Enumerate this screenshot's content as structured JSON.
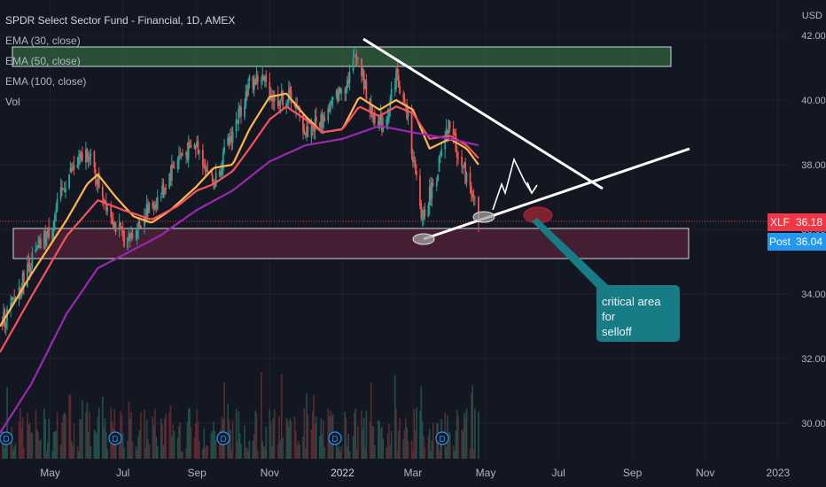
{
  "header": {
    "title": "SPDR Select Sector Fund - Financial, 1D, AMEX",
    "indicators": [
      "EMA (30, close)",
      "EMA (50, close)",
      "EMA (100, close)",
      "Vol"
    ],
    "currency": "USD"
  },
  "price_tags": [
    {
      "label": "XLF",
      "value": "36.18",
      "color": "#f23645"
    },
    {
      "label": "Post",
      "value": "36.04",
      "color": "#2196f3"
    }
  ],
  "annotation": {
    "text_line1": "critical area for",
    "text_line2": "selloff"
  },
  "colors": {
    "background": "#131722",
    "grid": "#1e222d",
    "up": "#26a69a",
    "down": "#ef5350",
    "ema30": "#ffb74d",
    "ema50": "#f7525f",
    "ema100": "#9c27b0",
    "resistance_zone": "#2e5b3a",
    "support_zone": "#4a1f35"
  },
  "dividend_marker_label": "D",
  "chart_data": {
    "type": "line",
    "title": "SPDR Select Sector Fund - Financial, 1D, AMEX",
    "xlabel": "",
    "ylabel": "USD",
    "x_ticks": [
      "May",
      "Jul",
      "Sep",
      "Nov",
      "2022",
      "Mar",
      "May",
      "Jul",
      "Sep",
      "Nov",
      "2023"
    ],
    "y_ticks": [
      30.0,
      32.0,
      34.0,
      36.0,
      38.0,
      40.0,
      42.0
    ],
    "y_tick_labels": [
      "30.00",
      "32.00",
      "34.00",
      "36.00",
      "38.00",
      "40.00",
      "42.00"
    ],
    "ylim": [
      29.0,
      42.5
    ],
    "x_range": [
      "2021-03-20",
      "2023-01-10"
    ],
    "grid": true,
    "legend": "top-left",
    "series": [
      {
        "name": "EMA (30, close)",
        "color": "#ffb74d",
        "x": [
          "2021-03-20",
          "2021-04-15",
          "2021-05-15",
          "2021-06-01",
          "2021-06-10",
          "2021-06-25",
          "2021-07-10",
          "2021-07-25",
          "2021-08-10",
          "2021-08-31",
          "2021-09-15",
          "2021-10-01",
          "2021-10-15",
          "2021-11-01",
          "2021-11-15",
          "2021-12-01",
          "2021-12-15",
          "2022-01-01",
          "2022-01-15",
          "2022-02-01",
          "2022-02-15",
          "2022-03-01",
          "2022-03-15",
          "2022-04-01",
          "2022-04-15",
          "2022-04-25"
        ],
        "values": [
          33.0,
          34.6,
          36.3,
          37.4,
          37.7,
          37.0,
          36.4,
          36.2,
          36.6,
          37.3,
          37.9,
          38.0,
          39.1,
          40.1,
          40.2,
          39.5,
          39.0,
          39.1,
          40.1,
          39.7,
          40.0,
          39.7,
          38.5,
          38.8,
          38.5,
          38.0
        ]
      },
      {
        "name": "EMA (50, close)",
        "color": "#f7525f",
        "x": [
          "2021-03-20",
          "2021-04-15",
          "2021-05-15",
          "2021-06-10",
          "2021-07-01",
          "2021-07-25",
          "2021-08-15",
          "2021-09-01",
          "2021-09-15",
          "2021-10-01",
          "2021-10-15",
          "2021-11-01",
          "2021-11-15",
          "2021-12-01",
          "2021-12-15",
          "2022-01-01",
          "2022-01-15",
          "2022-02-01",
          "2022-02-15",
          "2022-03-01",
          "2022-03-15",
          "2022-04-01",
          "2022-04-15",
          "2022-04-25"
        ],
        "values": [
          32.2,
          33.9,
          35.8,
          36.9,
          36.6,
          36.3,
          36.7,
          37.2,
          37.4,
          37.8,
          38.5,
          39.4,
          39.8,
          39.4,
          39.0,
          39.1,
          39.8,
          39.5,
          39.8,
          39.6,
          38.8,
          38.9,
          38.6,
          38.2
        ]
      },
      {
        "name": "EMA (100, close)",
        "color": "#9c27b0",
        "x": [
          "2021-03-20",
          "2021-04-15",
          "2021-05-15",
          "2021-06-10",
          "2021-07-01",
          "2021-08-01",
          "2021-09-01",
          "2021-10-01",
          "2021-11-01",
          "2021-12-01",
          "2022-01-01",
          "2022-02-01",
          "2022-03-01",
          "2022-04-01",
          "2022-04-25"
        ],
        "values": [
          29.7,
          31.2,
          33.4,
          34.8,
          35.2,
          35.8,
          36.6,
          37.2,
          38.1,
          38.6,
          38.8,
          39.2,
          39.0,
          38.8,
          38.6
        ]
      }
    ],
    "candle_path": {
      "name": "price",
      "x": [
        "2021-03-20",
        "2021-04-01",
        "2021-04-15",
        "2021-05-01",
        "2021-05-15",
        "2021-06-01",
        "2021-06-10",
        "2021-06-25",
        "2021-07-05",
        "2021-07-20",
        "2021-08-01",
        "2021-08-15",
        "2021-09-01",
        "2021-09-15",
        "2021-10-01",
        "2021-10-15",
        "2021-10-25",
        "2021-11-05",
        "2021-11-20",
        "2021-12-01",
        "2021-12-15",
        "2022-01-05",
        "2022-01-13",
        "2022-01-25",
        "2022-02-05",
        "2022-02-15",
        "2022-02-25",
        "2022-03-08",
        "2022-03-20",
        "2022-04-01",
        "2022-04-10",
        "2022-04-20",
        "2022-04-25"
      ],
      "values": [
        33.0,
        33.8,
        35.0,
        36.0,
        37.6,
        38.4,
        37.5,
        36.1,
        35.6,
        36.5,
        37.0,
        38.2,
        38.6,
        37.4,
        39.0,
        40.5,
        40.7,
        40.0,
        40.1,
        39.0,
        39.4,
        40.6,
        41.5,
        39.6,
        39.2,
        40.8,
        39.4,
        36.3,
        37.6,
        39.3,
        38.0,
        37.2,
        36.2
      ]
    },
    "volume_note": "volume histogram bars along the bottom"
  }
}
